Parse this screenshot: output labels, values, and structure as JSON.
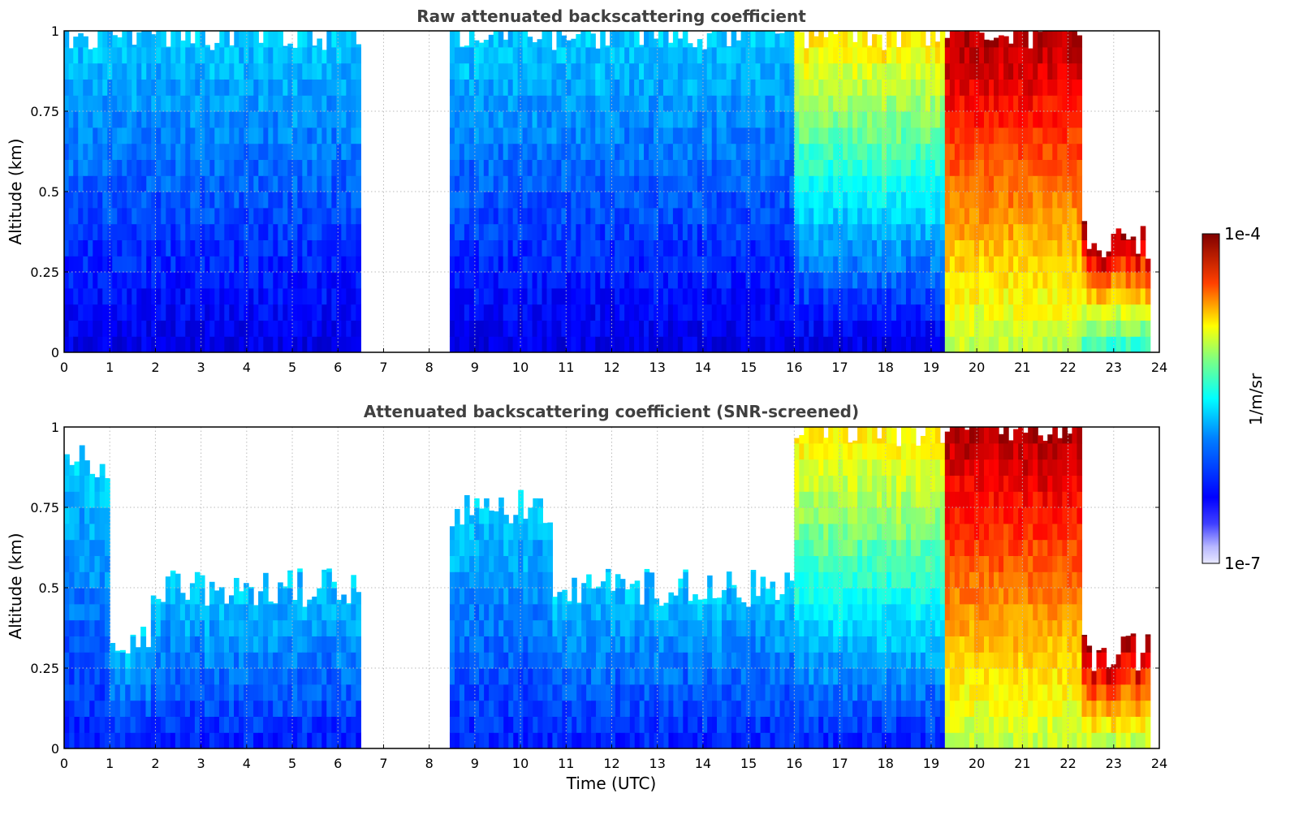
{
  "chart_data": [
    {
      "type": "heatmap",
      "title": "Raw attenuated backscattering coefficient",
      "xlabel": "",
      "ylabel": "Altitude (km)",
      "xlim": [
        0,
        24
      ],
      "ylim": [
        0,
        1
      ],
      "x_ticks": [
        "0",
        "1",
        "2",
        "3",
        "4",
        "5",
        "6",
        "7",
        "8",
        "9",
        "10",
        "11",
        "12",
        "13",
        "14",
        "15",
        "16",
        "17",
        "18",
        "19",
        "20",
        "21",
        "22",
        "23",
        "24"
      ],
      "y_ticks": [
        "0",
        "0.25",
        "0.5",
        "0.75",
        "1"
      ],
      "grid": true,
      "colorscale": "jet",
      "color_scale_type": "log",
      "segments": [
        {
          "x": [
            0.0,
            0.2
          ],
          "value_low": 2e-07,
          "value_high": 1e-06,
          "top": 1.0
        },
        {
          "x": [
            0.2,
            6.5
          ],
          "value_low": 2e-07,
          "value_high": 1e-06,
          "top": 1.0
        },
        {
          "x": [
            8.45,
            16.0
          ],
          "value_low": 2e-07,
          "value_high": 1e-06,
          "top": 1.0
        },
        {
          "x": [
            16.0,
            19.3
          ],
          "value_low": 2e-07,
          "value_high": 1e-05,
          "top": 1.0
        },
        {
          "x": [
            19.3,
            22.3
          ],
          "value_low": 5e-06,
          "value_high": 8e-05,
          "top": 1.0
        },
        {
          "x": [
            22.3,
            23.8
          ],
          "value_low": 2e-06,
          "value_high": 0.0001,
          "top": 0.35
        }
      ],
      "missing_data": [
        [
          6.5,
          8.45
        ]
      ]
    },
    {
      "type": "heatmap",
      "title": "Attenuated backscattering coefficient (SNR-screened)",
      "xlabel": "Time (UTC)",
      "ylabel": "Altitude (km)",
      "xlim": [
        0,
        24
      ],
      "ylim": [
        0,
        1
      ],
      "x_ticks": [
        "0",
        "1",
        "2",
        "3",
        "4",
        "5",
        "6",
        "7",
        "8",
        "9",
        "10",
        "11",
        "12",
        "13",
        "14",
        "15",
        "16",
        "17",
        "18",
        "19",
        "20",
        "21",
        "22",
        "23",
        "24"
      ],
      "y_ticks": [
        "0",
        "0.25",
        "0.5",
        "0.75",
        "1"
      ],
      "grid": true,
      "colorscale": "jet",
      "color_scale_type": "log",
      "segments": [
        {
          "x": [
            0.0,
            1.0
          ],
          "value_low": 3e-07,
          "value_high": 1e-06,
          "top": 0.9
        },
        {
          "x": [
            1.0,
            1.9
          ],
          "value_low": 3e-07,
          "value_high": 1e-06,
          "top": 0.35
        },
        {
          "x": [
            1.9,
            6.5
          ],
          "value_low": 3e-07,
          "value_high": 1e-06,
          "top": 0.5
        },
        {
          "x": [
            8.45,
            10.7
          ],
          "value_low": 3e-07,
          "value_high": 1e-06,
          "top": 0.75
        },
        {
          "x": [
            10.7,
            16.0
          ],
          "value_low": 3e-07,
          "value_high": 1e-06,
          "top": 0.5
        },
        {
          "x": [
            16.0,
            19.3
          ],
          "value_low": 3e-07,
          "value_high": 1e-05,
          "top": 1.0
        },
        {
          "x": [
            19.3,
            22.3
          ],
          "value_low": 5e-06,
          "value_high": 8e-05,
          "top": 1.0
        },
        {
          "x": [
            22.3,
            23.8
          ],
          "value_low": 5e-06,
          "value_high": 0.0001,
          "top": 0.3
        }
      ],
      "missing_data": [
        [
          6.5,
          8.45
        ]
      ]
    }
  ],
  "colorbar": {
    "label": "1/m/sr",
    "max_label": "1e-4",
    "min_label": "1e-7",
    "range": [
      1e-07,
      0.0001
    ],
    "scale": "log"
  }
}
